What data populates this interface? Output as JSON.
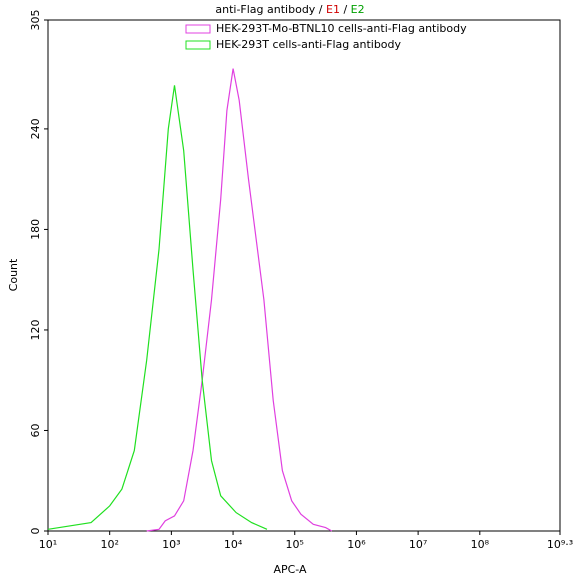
{
  "chart_data": {
    "type": "line",
    "title_parts": [
      {
        "text": "anti-Flag antibody / ",
        "color": "#000000"
      },
      {
        "text": "E1",
        "color": "#d00000"
      },
      {
        "text": " / ",
        "color": "#000000"
      },
      {
        "text": "E2",
        "color": "#00a000"
      }
    ],
    "x_label": "APC-A",
    "y_label": "Count",
    "x_scale": "log",
    "xlim": [
      10,
      1995262315
    ],
    "xticks": [
      {
        "value": 10,
        "label": "10¹"
      },
      {
        "value": 100,
        "label": "10²"
      },
      {
        "value": 1000,
        "label": "10³"
      },
      {
        "value": 10000,
        "label": "10⁴"
      },
      {
        "value": 100000,
        "label": "10⁵"
      },
      {
        "value": 1000000,
        "label": "10⁶"
      },
      {
        "value": 10000000,
        "label": "10⁷"
      },
      {
        "value": 100000000,
        "label": "10⁸"
      },
      {
        "value": 1995262315,
        "label": "10⁹·³"
      }
    ],
    "ylim": [
      0,
      305
    ],
    "yticks": [
      0,
      60,
      120,
      180,
      240,
      305
    ],
    "legend": "top",
    "series": [
      {
        "name": "HEK-293T-Mo-BTNL10 cells-anti-Flag antibody",
        "color": "#e040e0",
        "x": [
          398,
          631,
          794,
          1122,
          1585,
          2239,
          3162,
          4467,
          6310,
          7943,
          10000,
          12589,
          17783,
          31623,
          44668,
          63096,
          89125,
          125893,
          199526,
          316228,
          398107
        ],
        "values": [
          0,
          1,
          6,
          9,
          18,
          48,
          90,
          138,
          198,
          251,
          276,
          257,
          210,
          138,
          78,
          36,
          18,
          10,
          4,
          2,
          0
        ]
      },
      {
        "name": "HEK-293T cells-anti-Flag antibody",
        "color": "#20e020",
        "x": [
          10,
          50,
          100,
          158,
          251,
          398,
          631,
          891,
          1122,
          1585,
          2239,
          3162,
          4467,
          6310,
          11220,
          19953,
          35481
        ],
        "values": [
          1,
          5,
          15,
          25,
          48,
          102,
          168,
          240,
          266,
          227,
          156,
          90,
          42,
          21,
          11,
          5,
          1
        ]
      }
    ]
  }
}
